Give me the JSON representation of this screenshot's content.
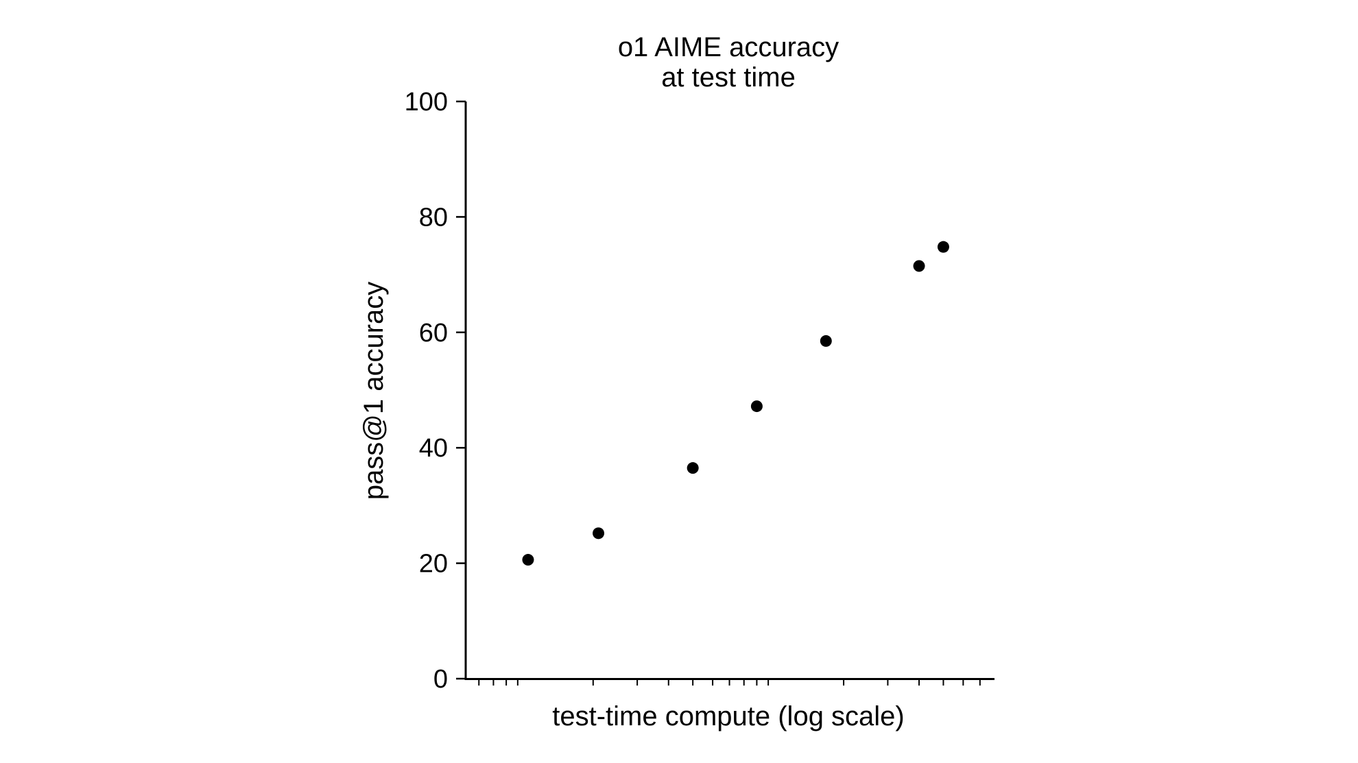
{
  "chart_data": {
    "type": "scatter",
    "title": "o1 AIME accuracy",
    "subtitle": "at test time",
    "xlabel": "test-time compute (log scale)",
    "ylabel": "pass@1 accuracy",
    "x_scale": "log",
    "y_ticks": [
      0,
      20,
      40,
      60,
      80,
      100
    ],
    "ylim": [
      0,
      100
    ],
    "grid": false,
    "legend": "none",
    "point_color": "#000000",
    "series": [
      {
        "points": [
          {
            "x": 1.1,
            "y": 20.6
          },
          {
            "x": 2.1,
            "y": 25.2
          },
          {
            "x": 5.0,
            "y": 36.5
          },
          {
            "x": 9.0,
            "y": 47.2
          },
          {
            "x": 17.0,
            "y": 58.5
          },
          {
            "x": 40.0,
            "y": 71.5
          },
          {
            "x": 50.0,
            "y": 74.8
          }
        ]
      }
    ],
    "xlim": [
      0.62,
      80.0
    ]
  }
}
